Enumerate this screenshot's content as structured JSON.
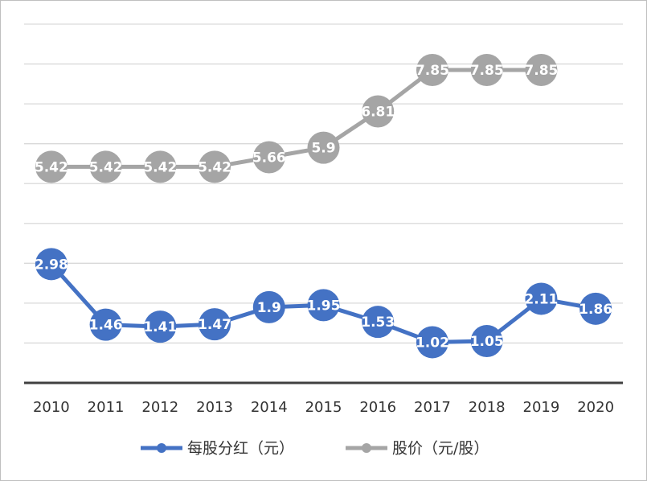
{
  "chart_data": {
    "type": "line",
    "categories": [
      "2010",
      "2011",
      "2012",
      "2013",
      "2014",
      "2015",
      "2016",
      "2017",
      "2018",
      "2019",
      "2020"
    ],
    "series": [
      {
        "name": "每股分红（元）",
        "color": "#4472c4",
        "values": [
          2.98,
          1.46,
          1.41,
          1.47,
          1.9,
          1.95,
          1.53,
          1.02,
          1.05,
          2.11,
          1.86
        ]
      },
      {
        "name": "股价（元/股）",
        "color": "#a5a5a5",
        "values": [
          5.42,
          5.42,
          5.42,
          5.42,
          5.66,
          5.9,
          6.81,
          7.85,
          7.85,
          7.85,
          null
        ]
      }
    ],
    "ylim": [
      0,
      9
    ],
    "yticks": [
      1,
      2,
      3,
      4,
      5,
      6,
      7,
      8,
      9
    ],
    "grid": true,
    "legend": "bottom"
  }
}
